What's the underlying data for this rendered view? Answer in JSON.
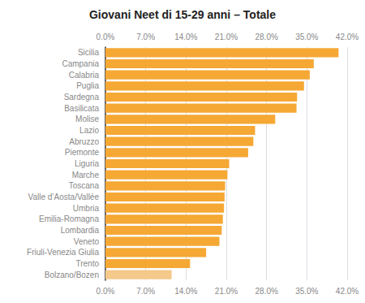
{
  "chart_data": {
    "type": "bar",
    "orientation": "horizontal",
    "title": "Giovani Neet di 15-29 anni – Totale",
    "categories": [
      "Sicilia",
      "Campania",
      "Calabria",
      "Puglia",
      "Sardegna",
      "Basilicata",
      "Molise",
      "Lazio",
      "Abruzzo",
      "Piemonte",
      "Liguria",
      "Marche",
      "Toscana",
      "Valle d’Aosta/Vallée",
      "Umbria",
      "Emilia-Romagna",
      "Lombardia",
      "Veneto",
      "Friuli-Venezia Giulia",
      "Trento",
      "Bolzano/Bozen"
    ],
    "values": [
      40.5,
      36.2,
      35.5,
      34.5,
      33.3,
      33.2,
      29.5,
      26.0,
      25.7,
      24.8,
      21.5,
      21.2,
      20.8,
      20.7,
      20.6,
      20.4,
      20.2,
      19.8,
      17.5,
      14.7,
      11.5
    ],
    "colors": [
      "#f5a834",
      "#f5a834",
      "#f5a834",
      "#f5a834",
      "#f5a834",
      "#f5a834",
      "#f5a834",
      "#f5a834",
      "#f5a834",
      "#f5a834",
      "#f5a834",
      "#f5a834",
      "#f5a834",
      "#f5a834",
      "#f5a834",
      "#f5a834",
      "#f5a834",
      "#f5a834",
      "#f5a834",
      "#f5a834",
      "#f5c98a"
    ],
    "xlim": [
      0,
      42
    ],
    "xticks": [
      {
        "value": 0,
        "label": "0.0%"
      },
      {
        "value": 7,
        "label": "7.0%"
      },
      {
        "value": 14,
        "label": "14.0%"
      },
      {
        "value": 21,
        "label": "21.0%"
      },
      {
        "value": 28,
        "label": "28.0%"
      },
      {
        "value": 35,
        "label": "35.0%"
      },
      {
        "value": 42,
        "label": "42.0%"
      }
    ],
    "grid": true
  }
}
